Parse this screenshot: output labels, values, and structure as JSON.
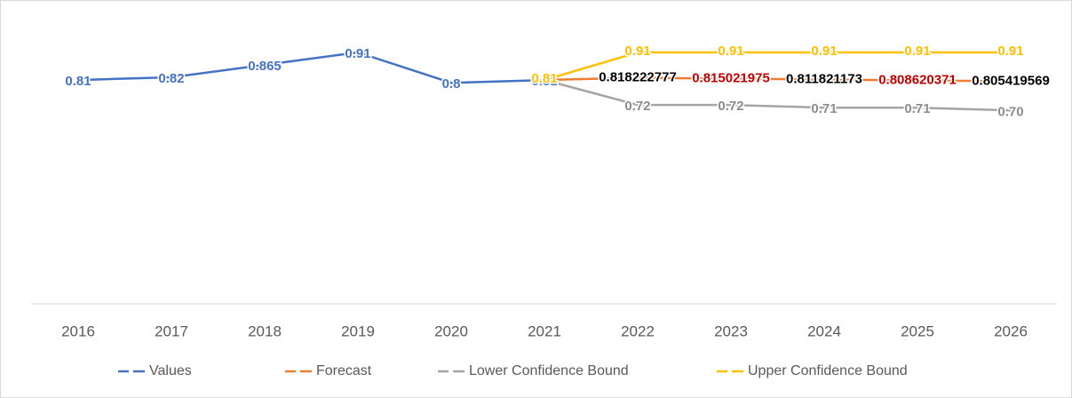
{
  "chart_data": {
    "type": "line",
    "categories": [
      "2016",
      "2017",
      "2018",
      "2019",
      "2020",
      "2021",
      "2022",
      "2023",
      "2024",
      "2025",
      "2026"
    ],
    "ylim": [
      0,
      1
    ],
    "series": [
      {
        "name": "Values",
        "color": "#4472c4",
        "label_color": "#4472c4",
        "values": [
          0.81,
          0.82,
          0.865,
          0.91,
          0.8,
          0.81,
          null,
          null,
          null,
          null,
          null
        ]
      },
      {
        "name": "Forecast",
        "color": "#ed7d31",
        "label_color": "#000000",
        "values": [
          null,
          null,
          null,
          null,
          null,
          0.81,
          0.818222777,
          0.815021975,
          0.811821173,
          0.808620371,
          0.805419569
        ]
      },
      {
        "name": "Lower Confidence Bound",
        "color": "#a5a5a5",
        "label_color": "#8c8c8c",
        "values": [
          null,
          null,
          null,
          null,
          null,
          0.81,
          0.72,
          0.72,
          0.71,
          0.71,
          0.7
        ],
        "value_labels": [
          null,
          null,
          null,
          null,
          null,
          null,
          "0.72",
          "0.72",
          "0.71",
          "0.71",
          "0.70"
        ]
      },
      {
        "name": "Upper Confidence Bound",
        "color": "#ffc000",
        "label_color": "#ffc000",
        "values": [
          null,
          null,
          null,
          null,
          null,
          0.81,
          0.91,
          0.91,
          0.91,
          0.91,
          0.91
        ]
      }
    ]
  }
}
